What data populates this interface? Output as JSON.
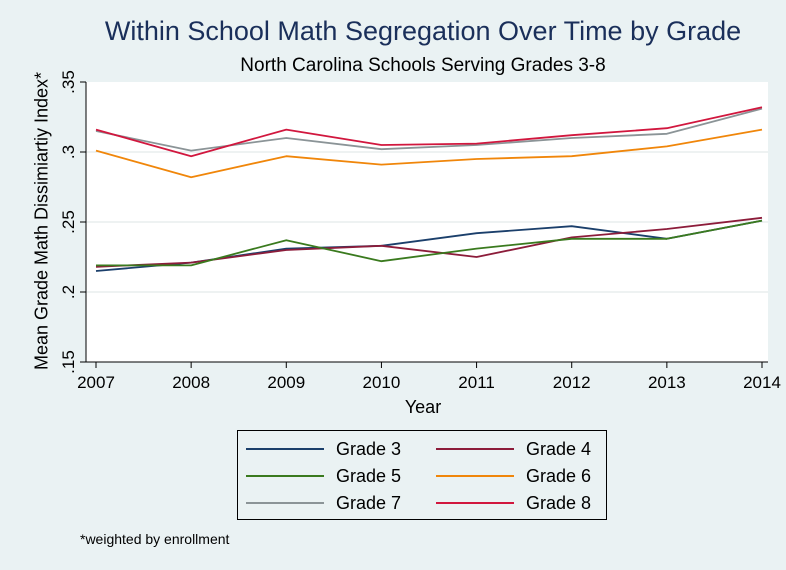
{
  "chart_data": {
    "type": "line",
    "title": "Within School Math Segregation Over Time by Grade",
    "subtitle": "North Carolina Schools Serving Grades 3-8",
    "xlabel": "Year",
    "ylabel": "Mean Grade Math Dissimiartiy Index*",
    "x": [
      2007,
      2008,
      2009,
      2010,
      2011,
      2012,
      2013,
      2014
    ],
    "xlim": [
      2007,
      2014
    ],
    "ylim": [
      0.15,
      0.35
    ],
    "yticks": [
      ".15",
      ".2",
      ".25",
      ".3",
      ".35"
    ],
    "grid": "horizontal",
    "legend_position": "bottom",
    "series": [
      {
        "name": "Grade 3",
        "color": "#1b3f6b",
        "values": [
          0.215,
          0.221,
          0.231,
          0.233,
          0.242,
          0.247,
          0.238,
          0.251
        ]
      },
      {
        "name": "Grade 4",
        "color": "#8c1c3a",
        "values": [
          0.218,
          0.221,
          0.23,
          0.233,
          0.225,
          0.239,
          0.245,
          0.253
        ]
      },
      {
        "name": "Grade 5",
        "color": "#3a7a1e",
        "values": [
          0.219,
          0.219,
          0.237,
          0.222,
          0.231,
          0.238,
          0.238,
          0.251
        ]
      },
      {
        "name": "Grade 6",
        "color": "#f0860a",
        "values": [
          0.301,
          0.282,
          0.297,
          0.291,
          0.295,
          0.297,
          0.304,
          0.316
        ]
      },
      {
        "name": "Grade 7",
        "color": "#8b9497",
        "values": [
          0.315,
          0.301,
          0.31,
          0.302,
          0.305,
          0.31,
          0.313,
          0.331
        ]
      },
      {
        "name": "Grade 8",
        "color": "#d1173e",
        "values": [
          0.316,
          0.297,
          0.316,
          0.305,
          0.306,
          0.312,
          0.317,
          0.332
        ]
      }
    ]
  },
  "footnote": "*weighted by enrollment"
}
